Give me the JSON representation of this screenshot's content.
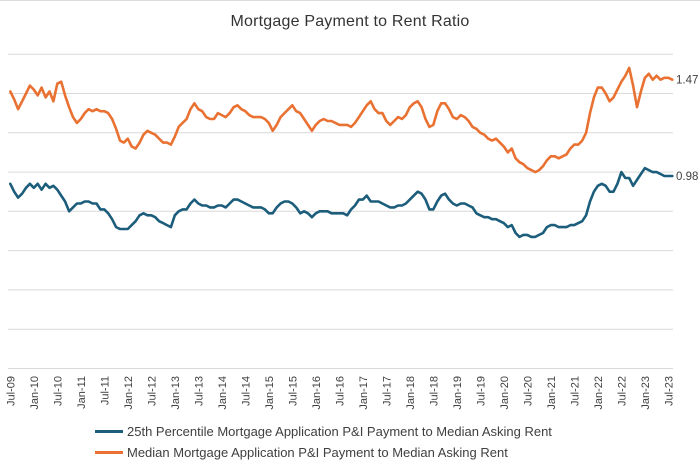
{
  "window": {
    "background": "#ffffff",
    "border_color": "#dcdcdc"
  },
  "chart_data": {
    "type": "line",
    "title": "Mortgage Payment to Rent Ratio",
    "xlabel": "",
    "ylabel": "",
    "x_frequency": "monthly",
    "x_range": [
      "Jul-2009",
      "Aug-2023"
    ],
    "x_tick_labels": [
      "Jul-09",
      "Jan-10",
      "Jul-10",
      "Jan-11",
      "Jul-11",
      "Jan-12",
      "Jul-12",
      "Jan-13",
      "Jul-13",
      "Jan-14",
      "Jul-14",
      "Jan-15",
      "Jul-15",
      "Jan-16",
      "Jul-16",
      "Jan-17",
      "Jul-17",
      "Jan-18",
      "Jul-18",
      "Jan-19",
      "Jul-19",
      "Jan-20",
      "Jul-20",
      "Jan-21",
      "Jul-21",
      "Jan-22",
      "Jul-22",
      "Jan-23",
      "Jul-23"
    ],
    "ylim": [
      0,
      1.6
    ],
    "y_gridline_values": [
      0,
      0.2,
      0.4,
      0.6,
      0.8,
      1.0,
      1.2,
      1.4,
      1.6
    ],
    "y_tick_labels_shown": false,
    "grid": true,
    "grid_color": "#d9d9d9",
    "text_color": "#404040",
    "legend_position": "bottom-left",
    "series": [
      {
        "name": "25th Percentile Mortgage Application P&I Payment to Median Asking Rent",
        "color": "#1c5d7c",
        "end_label": "0.98",
        "values": [
          0.94,
          0.9,
          0.87,
          0.89,
          0.92,
          0.94,
          0.92,
          0.94,
          0.91,
          0.94,
          0.92,
          0.93,
          0.91,
          0.88,
          0.85,
          0.8,
          0.82,
          0.84,
          0.84,
          0.85,
          0.85,
          0.84,
          0.84,
          0.81,
          0.81,
          0.79,
          0.76,
          0.72,
          0.71,
          0.71,
          0.71,
          0.73,
          0.75,
          0.78,
          0.79,
          0.78,
          0.78,
          0.77,
          0.75,
          0.74,
          0.73,
          0.72,
          0.78,
          0.8,
          0.81,
          0.81,
          0.84,
          0.86,
          0.84,
          0.83,
          0.83,
          0.82,
          0.82,
          0.83,
          0.83,
          0.82,
          0.84,
          0.86,
          0.86,
          0.85,
          0.84,
          0.83,
          0.82,
          0.82,
          0.82,
          0.81,
          0.79,
          0.79,
          0.82,
          0.84,
          0.85,
          0.85,
          0.84,
          0.82,
          0.79,
          0.8,
          0.79,
          0.77,
          0.79,
          0.8,
          0.8,
          0.8,
          0.79,
          0.79,
          0.79,
          0.79,
          0.78,
          0.81,
          0.83,
          0.86,
          0.86,
          0.88,
          0.85,
          0.85,
          0.85,
          0.84,
          0.83,
          0.82,
          0.82,
          0.83,
          0.83,
          0.84,
          0.86,
          0.88,
          0.9,
          0.89,
          0.86,
          0.81,
          0.81,
          0.85,
          0.88,
          0.89,
          0.86,
          0.84,
          0.83,
          0.84,
          0.84,
          0.83,
          0.82,
          0.79,
          0.78,
          0.77,
          0.77,
          0.76,
          0.76,
          0.75,
          0.74,
          0.72,
          0.73,
          0.69,
          0.67,
          0.68,
          0.68,
          0.67,
          0.67,
          0.68,
          0.69,
          0.72,
          0.73,
          0.73,
          0.72,
          0.72,
          0.72,
          0.73,
          0.73,
          0.74,
          0.75,
          0.78,
          0.85,
          0.9,
          0.93,
          0.94,
          0.93,
          0.9,
          0.9,
          0.94,
          1.0,
          0.97,
          0.97,
          0.93,
          0.96,
          0.99,
          1.02,
          1.01,
          1.0,
          1.0,
          0.99,
          0.98,
          0.98,
          0.98
        ]
      },
      {
        "name": "Median Mortgage Application P&I Payment to Median Asking Rent",
        "color": "#e97132",
        "end_label": "1.47",
        "values": [
          1.41,
          1.37,
          1.32,
          1.36,
          1.4,
          1.44,
          1.42,
          1.39,
          1.43,
          1.38,
          1.41,
          1.36,
          1.45,
          1.46,
          1.39,
          1.33,
          1.28,
          1.25,
          1.27,
          1.3,
          1.32,
          1.31,
          1.32,
          1.31,
          1.31,
          1.3,
          1.27,
          1.22,
          1.16,
          1.15,
          1.17,
          1.13,
          1.12,
          1.15,
          1.19,
          1.21,
          1.2,
          1.19,
          1.17,
          1.15,
          1.15,
          1.14,
          1.18,
          1.23,
          1.25,
          1.27,
          1.32,
          1.35,
          1.32,
          1.31,
          1.28,
          1.27,
          1.27,
          1.3,
          1.29,
          1.28,
          1.3,
          1.33,
          1.34,
          1.32,
          1.31,
          1.29,
          1.28,
          1.28,
          1.28,
          1.27,
          1.25,
          1.21,
          1.24,
          1.28,
          1.3,
          1.32,
          1.34,
          1.31,
          1.3,
          1.27,
          1.24,
          1.21,
          1.24,
          1.26,
          1.27,
          1.26,
          1.26,
          1.25,
          1.24,
          1.24,
          1.24,
          1.23,
          1.25,
          1.28,
          1.31,
          1.34,
          1.36,
          1.32,
          1.3,
          1.3,
          1.26,
          1.24,
          1.26,
          1.28,
          1.27,
          1.29,
          1.33,
          1.35,
          1.36,
          1.33,
          1.27,
          1.23,
          1.24,
          1.31,
          1.35,
          1.35,
          1.32,
          1.28,
          1.27,
          1.29,
          1.28,
          1.26,
          1.23,
          1.22,
          1.2,
          1.19,
          1.17,
          1.16,
          1.17,
          1.15,
          1.13,
          1.1,
          1.12,
          1.07,
          1.05,
          1.04,
          1.02,
          1.01,
          1.0,
          1.01,
          1.03,
          1.06,
          1.08,
          1.08,
          1.07,
          1.08,
          1.09,
          1.12,
          1.14,
          1.14,
          1.16,
          1.2,
          1.3,
          1.38,
          1.43,
          1.43,
          1.4,
          1.36,
          1.38,
          1.42,
          1.46,
          1.49,
          1.53,
          1.44,
          1.33,
          1.41,
          1.48,
          1.5,
          1.47,
          1.49,
          1.47,
          1.48,
          1.48,
          1.47
        ]
      }
    ]
  },
  "legend": {
    "items": [
      {
        "label": "25th Percentile Mortgage Application P&I Payment to Median Asking Rent"
      },
      {
        "label": "Median Mortgage Application P&I Payment to Median Asking Rent"
      }
    ]
  }
}
